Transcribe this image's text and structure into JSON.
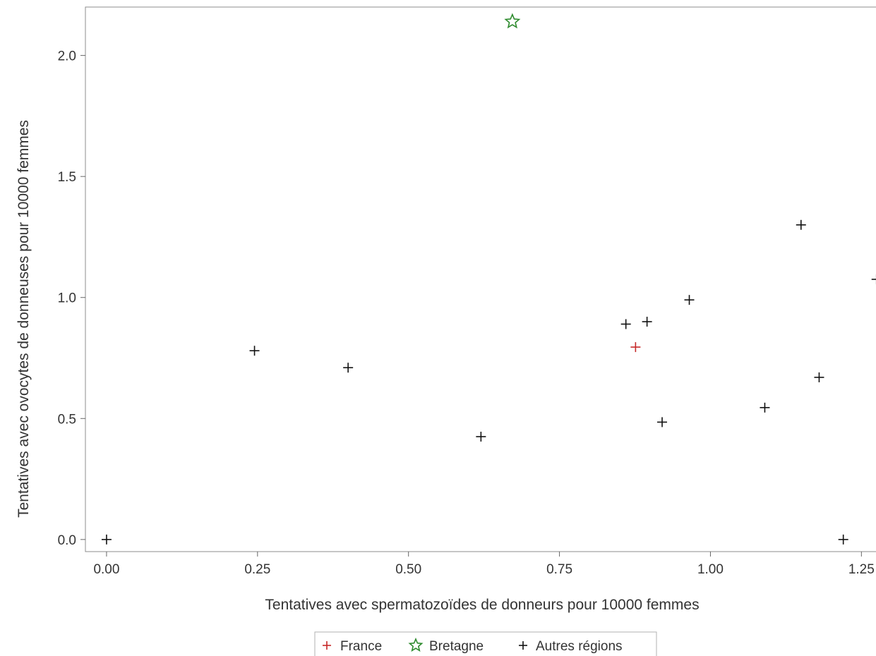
{
  "chart_data": {
    "type": "scatter",
    "xlabel": "Tentatives avec spermatozoïdes de donneurs pour 10000 femmes",
    "ylabel": "Tentatives avec ovocytes de donneuses pour 10000 femmes",
    "xlim": [
      -0.035,
      1.28
    ],
    "ylim": [
      -0.05,
      2.2
    ],
    "xticks": [
      0.0,
      0.25,
      0.5,
      0.75,
      1.0,
      1.25
    ],
    "xtick_labels": [
      "0.00",
      "0.25",
      "0.50",
      "0.75",
      "1.00",
      "1.25"
    ],
    "yticks": [
      0.0,
      0.5,
      1.0,
      1.5,
      2.0
    ],
    "ytick_labels": [
      "0.0",
      "0.5",
      "1.0",
      "1.5",
      "2.0"
    ],
    "grid": false,
    "legend_position": "bottom-center",
    "series": [
      {
        "name": "France",
        "marker": "plus",
        "color": "#c62828",
        "points": [
          [
            0.876,
            0.795
          ]
        ]
      },
      {
        "name": "Bretagne",
        "marker": "star",
        "color": "#2e8b2e",
        "points": [
          [
            0.672,
            2.14
          ]
        ]
      },
      {
        "name": "Autres régions",
        "marker": "plus",
        "color": "#111111",
        "points": [
          [
            0.0,
            0.0
          ],
          [
            0.245,
            0.78
          ],
          [
            0.4,
            0.71
          ],
          [
            0.62,
            0.425
          ],
          [
            0.86,
            0.89
          ],
          [
            0.895,
            0.9
          ],
          [
            0.92,
            0.485
          ],
          [
            0.965,
            0.99
          ],
          [
            1.09,
            0.545
          ],
          [
            1.15,
            1.3
          ],
          [
            1.18,
            0.67
          ],
          [
            1.22,
            0.0
          ],
          [
            1.275,
            1.075
          ]
        ]
      }
    ]
  }
}
